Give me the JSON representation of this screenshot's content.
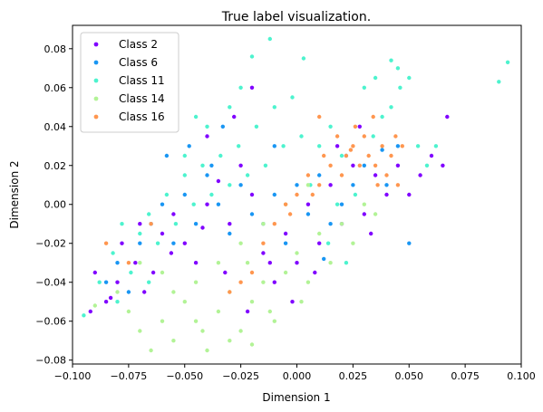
{
  "chart_data": {
    "type": "scatter",
    "title": "True label visualization.",
    "xlabel": "Dimension 1",
    "ylabel": "Dimension 2",
    "xlim": [
      -0.1,
      0.1
    ],
    "ylim": [
      -0.082,
      0.092
    ],
    "xticks": [
      -0.1,
      -0.075,
      -0.05,
      -0.025,
      0.0,
      0.025,
      0.05,
      0.075,
      0.1
    ],
    "xtick_labels": [
      "−0.100",
      "−0.075",
      "−0.050",
      "−0.025",
      "0.000",
      "0.025",
      "0.050",
      "0.075",
      "0.100"
    ],
    "yticks": [
      -0.08,
      -0.06,
      -0.04,
      -0.02,
      0.0,
      0.02,
      0.04,
      0.06,
      0.08
    ],
    "ytick_labels": [
      "−0.08",
      "−0.06",
      "−0.04",
      "−0.02",
      "0.00",
      "0.02",
      "0.04",
      "0.06",
      "0.08"
    ],
    "grid": false,
    "legend_position": "top-left",
    "series": [
      {
        "name": "Class 2",
        "color": "#8000ff",
        "points": [
          [
            -0.09,
            -0.035
          ],
          [
            -0.085,
            -0.05
          ],
          [
            -0.08,
            -0.04
          ],
          [
            -0.078,
            -0.02
          ],
          [
            -0.072,
            -0.03
          ],
          [
            -0.068,
            -0.045
          ],
          [
            -0.06,
            -0.015
          ],
          [
            -0.055,
            -0.005
          ],
          [
            -0.05,
            -0.02
          ],
          [
            -0.045,
            -0.03
          ],
          [
            -0.04,
            0.0
          ],
          [
            -0.035,
            0.012
          ],
          [
            -0.03,
            -0.01
          ],
          [
            -0.025,
            0.02
          ],
          [
            -0.02,
            0.005
          ],
          [
            -0.015,
            -0.025
          ],
          [
            -0.01,
            -0.04
          ],
          [
            -0.005,
            -0.015
          ],
          [
            0.0,
            -0.03
          ],
          [
            0.005,
            0.0
          ],
          [
            0.01,
            -0.02
          ],
          [
            0.015,
            0.01
          ],
          [
            0.02,
            -0.01
          ],
          [
            0.025,
            0.02
          ],
          [
            0.03,
            -0.005
          ],
          [
            0.035,
            0.015
          ],
          [
            0.04,
            0.005
          ],
          [
            0.045,
            0.02
          ],
          [
            0.05,
            0.005
          ],
          [
            0.055,
            0.015
          ],
          [
            0.06,
            0.025
          ],
          [
            0.065,
            0.02
          ],
          [
            0.067,
            0.045
          ],
          [
            -0.092,
            -0.055
          ],
          [
            -0.083,
            -0.048
          ],
          [
            -0.07,
            -0.01
          ],
          [
            -0.064,
            -0.035
          ],
          [
            -0.056,
            -0.025
          ],
          [
            -0.042,
            -0.012
          ],
          [
            -0.032,
            -0.035
          ],
          [
            -0.022,
            -0.055
          ],
          [
            -0.012,
            -0.03
          ],
          [
            -0.002,
            -0.05
          ],
          [
            0.008,
            -0.035
          ],
          [
            0.018,
            0.03
          ],
          [
            0.028,
            0.04
          ],
          [
            -0.04,
            0.035
          ],
          [
            -0.028,
            0.045
          ],
          [
            -0.02,
            0.06
          ],
          [
            0.033,
            -0.015
          ]
        ]
      },
      {
        "name": "Class 6",
        "color": "#1996f3",
        "points": [
          [
            -0.08,
            -0.03
          ],
          [
            -0.07,
            -0.02
          ],
          [
            -0.065,
            -0.01
          ],
          [
            -0.06,
            0.0
          ],
          [
            -0.055,
            -0.02
          ],
          [
            -0.05,
            0.005
          ],
          [
            -0.045,
            -0.01
          ],
          [
            -0.04,
            0.015
          ],
          [
            -0.035,
            0.0
          ],
          [
            -0.03,
            -0.015
          ],
          [
            -0.025,
            0.01
          ],
          [
            -0.02,
            -0.005
          ],
          [
            -0.015,
            -0.01
          ],
          [
            -0.01,
            0.005
          ],
          [
            -0.005,
            -0.02
          ],
          [
            0.0,
            0.01
          ],
          [
            0.005,
            -0.005
          ],
          [
            0.01,
            0.015
          ],
          [
            0.015,
            -0.01
          ],
          [
            0.02,
            0.0
          ],
          [
            0.025,
            0.01
          ],
          [
            0.03,
            0.02
          ],
          [
            0.04,
            0.01
          ],
          [
            0.05,
            -0.02
          ],
          [
            0.045,
            0.03
          ],
          [
            -0.058,
            0.025
          ],
          [
            -0.048,
            0.03
          ],
          [
            -0.038,
            0.02
          ],
          [
            -0.075,
            -0.045
          ],
          [
            -0.085,
            -0.04
          ],
          [
            0.022,
            0.025
          ],
          [
            0.038,
            0.028
          ],
          [
            -0.033,
            0.04
          ],
          [
            -0.01,
            0.03
          ],
          [
            0.012,
            -0.028
          ]
        ]
      },
      {
        "name": "Class 11",
        "color": "#4df3ce",
        "points": [
          [
            -0.095,
            -0.057
          ],
          [
            -0.088,
            -0.04
          ],
          [
            -0.082,
            -0.025
          ],
          [
            -0.078,
            -0.01
          ],
          [
            -0.074,
            -0.035
          ],
          [
            -0.07,
            -0.015
          ],
          [
            -0.066,
            -0.005
          ],
          [
            -0.062,
            -0.02
          ],
          [
            -0.058,
            0.005
          ],
          [
            -0.054,
            -0.01
          ],
          [
            -0.05,
            0.015
          ],
          [
            -0.046,
            0.0
          ],
          [
            -0.042,
            0.02
          ],
          [
            -0.038,
            0.005
          ],
          [
            -0.034,
            0.025
          ],
          [
            -0.03,
            0.01
          ],
          [
            -0.026,
            0.03
          ],
          [
            -0.022,
            0.015
          ],
          [
            -0.018,
            0.04
          ],
          [
            -0.014,
            0.02
          ],
          [
            -0.01,
            0.05
          ],
          [
            -0.006,
            0.03
          ],
          [
            -0.002,
            0.055
          ],
          [
            0.002,
            0.035
          ],
          [
            0.006,
            0.01
          ],
          [
            0.01,
            0.03
          ],
          [
            0.014,
            -0.02
          ],
          [
            0.018,
            0.0
          ],
          [
            0.022,
            -0.03
          ],
          [
            0.026,
            0.005
          ],
          [
            0.03,
            0.06
          ],
          [
            0.034,
            0.035
          ],
          [
            0.038,
            0.045
          ],
          [
            0.042,
            0.05
          ],
          [
            0.046,
            0.06
          ],
          [
            0.05,
            0.065
          ],
          [
            0.054,
            0.03
          ],
          [
            0.058,
            0.02
          ],
          [
            0.062,
            0.03
          ],
          [
            0.09,
            0.063
          ],
          [
            0.094,
            0.073
          ],
          [
            -0.012,
            0.085
          ],
          [
            -0.02,
            0.076
          ],
          [
            0.003,
            0.075
          ],
          [
            0.042,
            0.074
          ],
          [
            -0.04,
            0.04
          ],
          [
            -0.045,
            0.045
          ],
          [
            -0.05,
            0.025
          ],
          [
            -0.03,
            0.05
          ],
          [
            -0.025,
            0.06
          ],
          [
            0.045,
            0.07
          ],
          [
            0.035,
            0.065
          ],
          [
            0.015,
            0.04
          ],
          [
            0.02,
            0.025
          ],
          [
            -0.066,
            -0.04
          ],
          [
            -0.08,
            -0.05
          ]
        ]
      },
      {
        "name": "Class 14",
        "color": "#b2f396",
        "points": [
          [
            -0.09,
            -0.052
          ],
          [
            -0.08,
            -0.045
          ],
          [
            -0.075,
            -0.055
          ],
          [
            -0.07,
            -0.065
          ],
          [
            -0.065,
            -0.075
          ],
          [
            -0.06,
            -0.06
          ],
          [
            -0.055,
            -0.07
          ],
          [
            -0.05,
            -0.05
          ],
          [
            -0.045,
            -0.06
          ],
          [
            -0.04,
            -0.075
          ],
          [
            -0.035,
            -0.055
          ],
          [
            -0.03,
            -0.045
          ],
          [
            -0.025,
            -0.065
          ],
          [
            -0.02,
            -0.05
          ],
          [
            -0.015,
            -0.04
          ],
          [
            -0.01,
            -0.06
          ],
          [
            -0.005,
            -0.035
          ],
          [
            0.0,
            -0.025
          ],
          [
            0.005,
            -0.04
          ],
          [
            0.01,
            -0.015
          ],
          [
            0.015,
            -0.03
          ],
          [
            0.02,
            -0.01
          ],
          [
            0.025,
            -0.02
          ],
          [
            0.03,
            0.0
          ],
          [
            0.035,
            -0.005
          ],
          [
            -0.03,
            -0.07
          ],
          [
            -0.02,
            -0.072
          ],
          [
            -0.035,
            -0.03
          ],
          [
            -0.045,
            -0.04
          ],
          [
            -0.025,
            -0.02
          ],
          [
            -0.015,
            -0.01
          ],
          [
            -0.005,
            0.0
          ],
          [
            0.005,
            0.01
          ],
          [
            -0.06,
            -0.035
          ],
          [
            -0.07,
            -0.03
          ],
          [
            -0.055,
            -0.045
          ],
          [
            -0.012,
            -0.055
          ],
          [
            0.002,
            -0.05
          ],
          [
            -0.022,
            -0.03
          ],
          [
            -0.042,
            -0.065
          ]
        ]
      },
      {
        "name": "Class 16",
        "color": "#ff964f",
        "points": [
          [
            -0.085,
            -0.02
          ],
          [
            -0.075,
            -0.03
          ],
          [
            -0.065,
            -0.01
          ],
          [
            -0.02,
            -0.035
          ],
          [
            -0.015,
            -0.02
          ],
          [
            -0.01,
            -0.01
          ],
          [
            -0.005,
            0.0
          ],
          [
            0.0,
            0.005
          ],
          [
            0.005,
            0.015
          ],
          [
            0.01,
            0.01
          ],
          [
            0.015,
            0.02
          ],
          [
            0.02,
            0.015
          ],
          [
            0.022,
            0.025
          ],
          [
            0.025,
            0.03
          ],
          [
            0.028,
            0.02
          ],
          [
            0.03,
            0.035
          ],
          [
            0.032,
            0.025
          ],
          [
            0.035,
            0.02
          ],
          [
            0.038,
            0.03
          ],
          [
            0.04,
            0.015
          ],
          [
            0.042,
            0.025
          ],
          [
            0.045,
            0.01
          ],
          [
            0.047,
            0.03
          ],
          [
            0.026,
            0.04
          ],
          [
            0.018,
            0.035
          ],
          [
            0.012,
            0.025
          ],
          [
            0.007,
            0.005
          ],
          [
            -0.003,
            -0.005
          ],
          [
            0.034,
            0.045
          ],
          [
            0.024,
            0.028
          ],
          [
            -0.025,
            -0.04
          ],
          [
            -0.03,
            -0.045
          ],
          [
            0.01,
            0.045
          ],
          [
            0.036,
            0.01
          ],
          [
            0.044,
            0.035
          ]
        ]
      }
    ]
  }
}
